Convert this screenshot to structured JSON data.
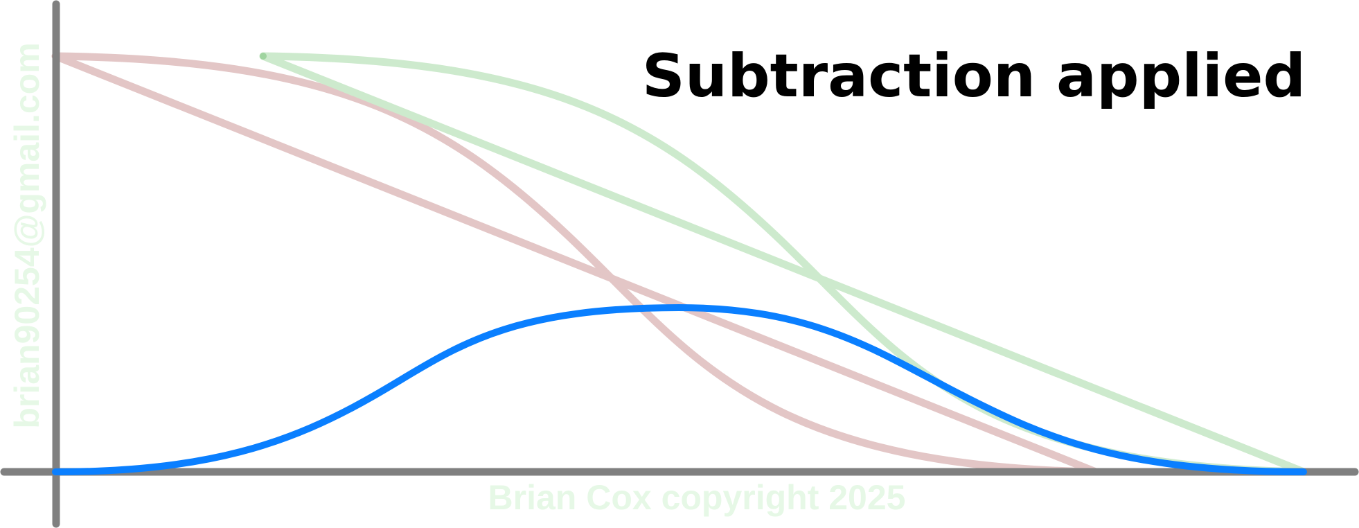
{
  "title": "Subtraction applied",
  "watermark": {
    "email": "brian90254@gmail.com",
    "copyright": "Brian Cox copyright 2025",
    "color": "#e6f8e6"
  },
  "colors": {
    "axis": "#808080",
    "red_curve": "#e3c6c6",
    "red_endpoint": "#c79a9a",
    "green_curve": "#cdeacd",
    "green_endpoint": "#9fd49f",
    "result_curve": "#0a7fff"
  }
}
